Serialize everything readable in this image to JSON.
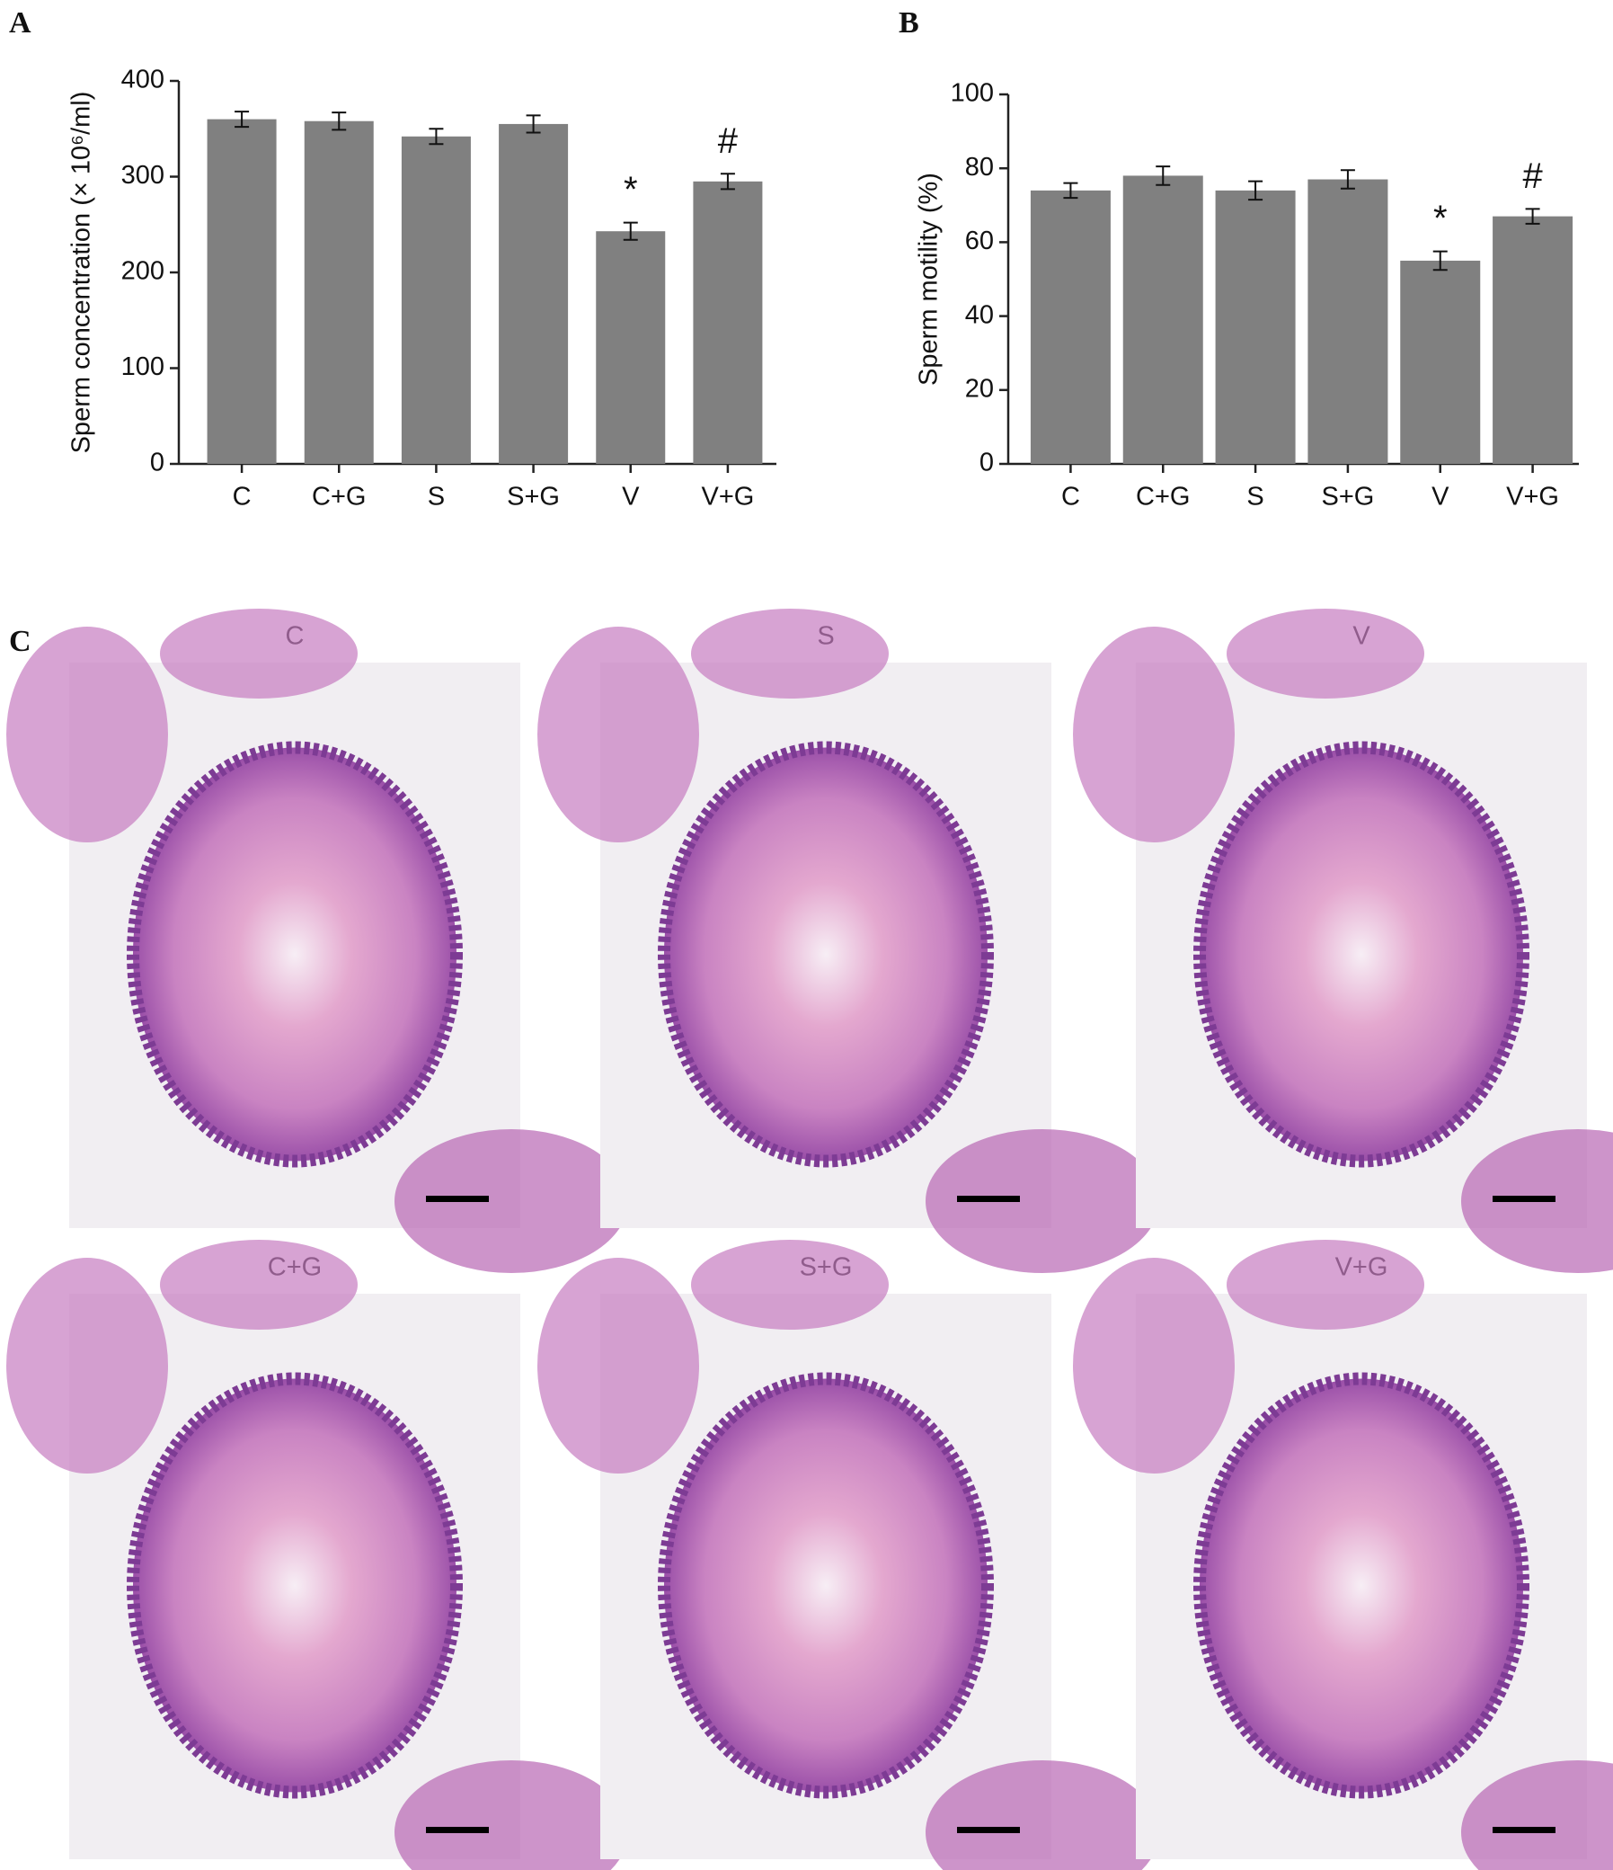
{
  "chart_data": [
    {
      "type": "bar",
      "panel_label": "A",
      "y_label": "Sperm concentration (× 10⁶/ml)",
      "categories": [
        "C",
        "C+G",
        "S",
        "S+G",
        "V",
        "V+G"
      ],
      "values": [
        360,
        358,
        342,
        355,
        243,
        295
      ],
      "errors": [
        8,
        9,
        8,
        9,
        9,
        8
      ],
      "color": "#808080",
      "ylim": [
        0,
        400
      ],
      "yticks": [
        0,
        100,
        200,
        300,
        400
      ],
      "annotations": [
        {
          "text": "*",
          "x": "V"
        },
        {
          "text": "#",
          "x": "V+G"
        }
      ]
    },
    {
      "type": "bar",
      "panel_label": "B",
      "y_label": "Sperm motility (%)",
      "categories": [
        "C",
        "C+G",
        "S",
        "S+G",
        "V",
        "V+G"
      ],
      "values": [
        74,
        78,
        74,
        77,
        55,
        67
      ],
      "errors": [
        2,
        2.5,
        2.5,
        2.5,
        2.5,
        2
      ],
      "color": "#808080",
      "ylim": [
        0,
        100
      ],
      "yticks": [
        0,
        20,
        40,
        60,
        80,
        100
      ],
      "annotations": [
        {
          "text": "*",
          "x": "V"
        },
        {
          "text": "#",
          "x": "V+G"
        }
      ]
    }
  ],
  "histology": {
    "panel_label": "C",
    "images": [
      "C",
      "S",
      "V",
      "C+G",
      "S+G",
      "V+G"
    ]
  }
}
